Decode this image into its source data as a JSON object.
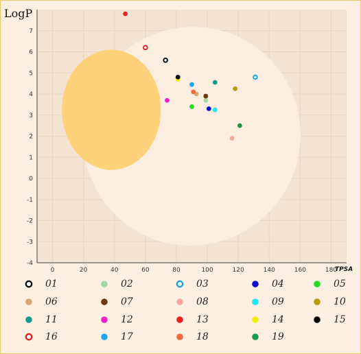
{
  "chart_data": {
    "type": "scatter",
    "title": "",
    "xlabel": "TPSA",
    "ylabel": "LogP",
    "xlim": [
      -10,
      190
    ],
    "ylim": [
      -4,
      8
    ],
    "x_ticks": [
      "0",
      "20",
      "40",
      "60",
      "80",
      "100",
      "120",
      "140",
      "160",
      "180"
    ],
    "y_ticks": [
      "-4",
      "-3",
      "-2",
      "-1",
      "0",
      "1",
      "2",
      "3",
      "4",
      "5",
      "6",
      "7"
    ],
    "grid": true,
    "legend_position": "bottom",
    "regions": [
      {
        "name": "white",
        "shape": "ellipse",
        "center": [
          90,
          2.0
        ],
        "semi_axes": [
          70,
          5.2
        ],
        "color": "#fbeee0"
      },
      {
        "name": "yolk",
        "shape": "ellipse",
        "center": [
          38,
          3.25
        ],
        "semi_axes": [
          32,
          2.85
        ],
        "color": "#fdd27a"
      }
    ],
    "series": [
      {
        "name": "01",
        "x": 73,
        "y": 5.6,
        "color": "#111111",
        "hollow": true
      },
      {
        "name": "02",
        "x": 99,
        "y": 3.7,
        "color": "#a4d9a4",
        "hollow": false
      },
      {
        "name": "03",
        "x": 131,
        "y": 4.8,
        "color": "#1aa3e8",
        "hollow": true
      },
      {
        "name": "04",
        "x": 101,
        "y": 3.3,
        "color": "#0a10cc",
        "hollow": false
      },
      {
        "name": "05",
        "x": 90,
        "y": 3.4,
        "color": "#22dd22",
        "hollow": false
      },
      {
        "name": "06",
        "x": 93,
        "y": 4.0,
        "color": "#d7a873",
        "hollow": false
      },
      {
        "name": "07",
        "x": 99,
        "y": 3.9,
        "color": "#6e3a0a",
        "hollow": false
      },
      {
        "name": "08",
        "x": 116,
        "y": 1.9,
        "color": "#f4a8a0",
        "hollow": false
      },
      {
        "name": "09",
        "x": 105,
        "y": 3.25,
        "color": "#22e6ee",
        "hollow": false
      },
      {
        "name": "10",
        "x": 118,
        "y": 4.25,
        "color": "#b59a10",
        "hollow": false
      },
      {
        "name": "11",
        "x": 105,
        "y": 4.55,
        "color": "#159a8f",
        "hollow": false
      },
      {
        "name": "12",
        "x": 74,
        "y": 3.7,
        "color": "#ee20c8",
        "hollow": false
      },
      {
        "name": "13",
        "x": 47,
        "y": 7.8,
        "color": "#ee2020",
        "hollow": false
      },
      {
        "name": "14",
        "x": 81,
        "y": 4.7,
        "color": "#f2ec10",
        "hollow": false
      },
      {
        "name": "15",
        "x": 81,
        "y": 4.8,
        "color": "#000000",
        "hollow": false
      },
      {
        "name": "16",
        "x": 60,
        "y": 6.2,
        "color": "#e02424",
        "hollow": true
      },
      {
        "name": "17",
        "x": 90,
        "y": 4.45,
        "color": "#1fa6ee",
        "hollow": false
      },
      {
        "name": "18",
        "x": 91,
        "y": 4.1,
        "color": "#f26a3c",
        "hollow": false
      },
      {
        "name": "19",
        "x": 121,
        "y": 2.5,
        "color": "#189a48",
        "hollow": false
      }
    ]
  }
}
